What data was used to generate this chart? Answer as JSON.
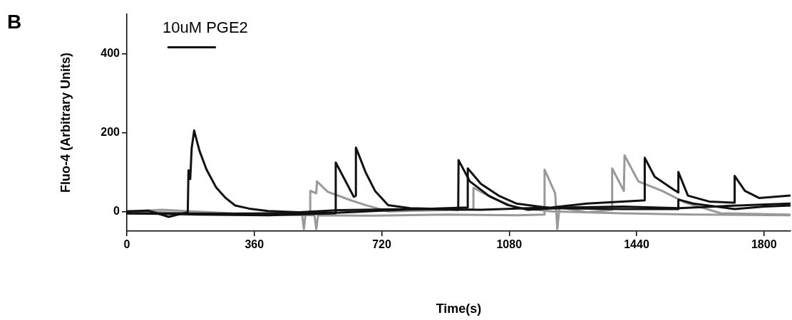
{
  "chart_data": {
    "type": "line",
    "xlabel": "Time(s)",
    "ylabel": "Fluo-4 (Arbitrary Units)",
    "annotations": [
      "B",
      "10uM PGE2"
    ],
    "xlim": [
      0,
      1875
    ],
    "xticks": [
      0,
      360,
      720,
      1080,
      1440,
      1800
    ],
    "ylim": [
      -50,
      500
    ],
    "yticks": [
      0,
      200,
      400
    ],
    "grid": false,
    "legend": false,
    "marker": "none",
    "line_style": "solid",
    "series": [
      {
        "color": "#111111",
        "x": [
          0,
          60,
          118,
          172,
          174,
          179,
          183,
          190,
          205,
          225,
          252,
          279,
          306,
          346,
          399,
          486,
          600,
          800,
          1000,
          1200,
          1300,
          1463,
          1463,
          1491,
          1545,
          1558,
          1558,
          1585,
          1645,
          1712,
          1717,
          1717,
          1746,
          1786,
          1873
        ],
        "values": [
          0,
          2,
          -14,
          -2,
          104,
          82,
          160,
          205,
          154,
          106,
          61,
          34,
          15,
          7,
          1,
          -2,
          3,
          6,
          4,
          10,
          20,
          28,
          136,
          88,
          55,
          48,
          100,
          40,
          25,
          22,
          22,
          90,
          52,
          34,
          40
        ]
      },
      {
        "color": "#111111",
        "x": [
          0,
          200,
          400,
          590,
          590,
          641,
          647,
          647,
          674,
          701,
          738,
          800,
          900,
          936,
          937,
          969,
          1022,
          1076,
          1133,
          1250,
          1400,
          1560,
          1700,
          1873
        ],
        "values": [
          -5,
          -8,
          -10,
          -5,
          124,
          37,
          40,
          162,
          100,
          52,
          16,
          8,
          6,
          4,
          130,
          76,
          40,
          16,
          4,
          10,
          12,
          8,
          14,
          20
        ]
      },
      {
        "color": "#111111",
        "x": [
          0,
          300,
          600,
          800,
          963,
          963,
          1000,
          1050,
          1100,
          1200,
          1400,
          1540,
          1558,
          1558,
          1600,
          1717,
          1800,
          1873
        ],
        "values": [
          -5,
          -6,
          -3,
          5,
          10,
          109,
          70,
          40,
          20,
          8,
          6,
          6,
          6,
          30,
          20,
          6,
          12,
          15
        ]
      },
      {
        "color": "#999999",
        "x": [
          0,
          100,
          300,
          495,
          500,
          505,
          518,
          518,
          535,
          537,
          567,
          633,
          674,
          738,
          900,
          979,
          979,
          1032,
          1099,
          1200,
          1400,
          1600,
          1873
        ],
        "values": [
          0,
          4,
          -5,
          -8,
          -45,
          -5,
          -3,
          52,
          46,
          76,
          50,
          28,
          16,
          0,
          3,
          5,
          60,
          34,
          10,
          0,
          -5,
          -8,
          -10
        ]
      },
      {
        "color": "#999999",
        "x": [
          0,
          200,
          400,
          530,
          535,
          540,
          700,
          900,
          1100,
          1180,
          1180,
          1210,
          1216,
          1222,
          1300,
          1371,
          1371,
          1404,
          1406,
          1445,
          1512,
          1578,
          1679,
          1873
        ],
        "values": [
          0,
          -5,
          -8,
          -10,
          -45,
          -10,
          -11,
          -8,
          -10,
          -8,
          106,
          46,
          -45,
          10,
          -2,
          4,
          109,
          52,
          142,
          76,
          52,
          22,
          -5,
          -8
        ]
      },
      {
        "color": "#111111",
        "x": [
          117,
          249
        ],
        "values": [
          416,
          416
        ]
      }
    ]
  }
}
